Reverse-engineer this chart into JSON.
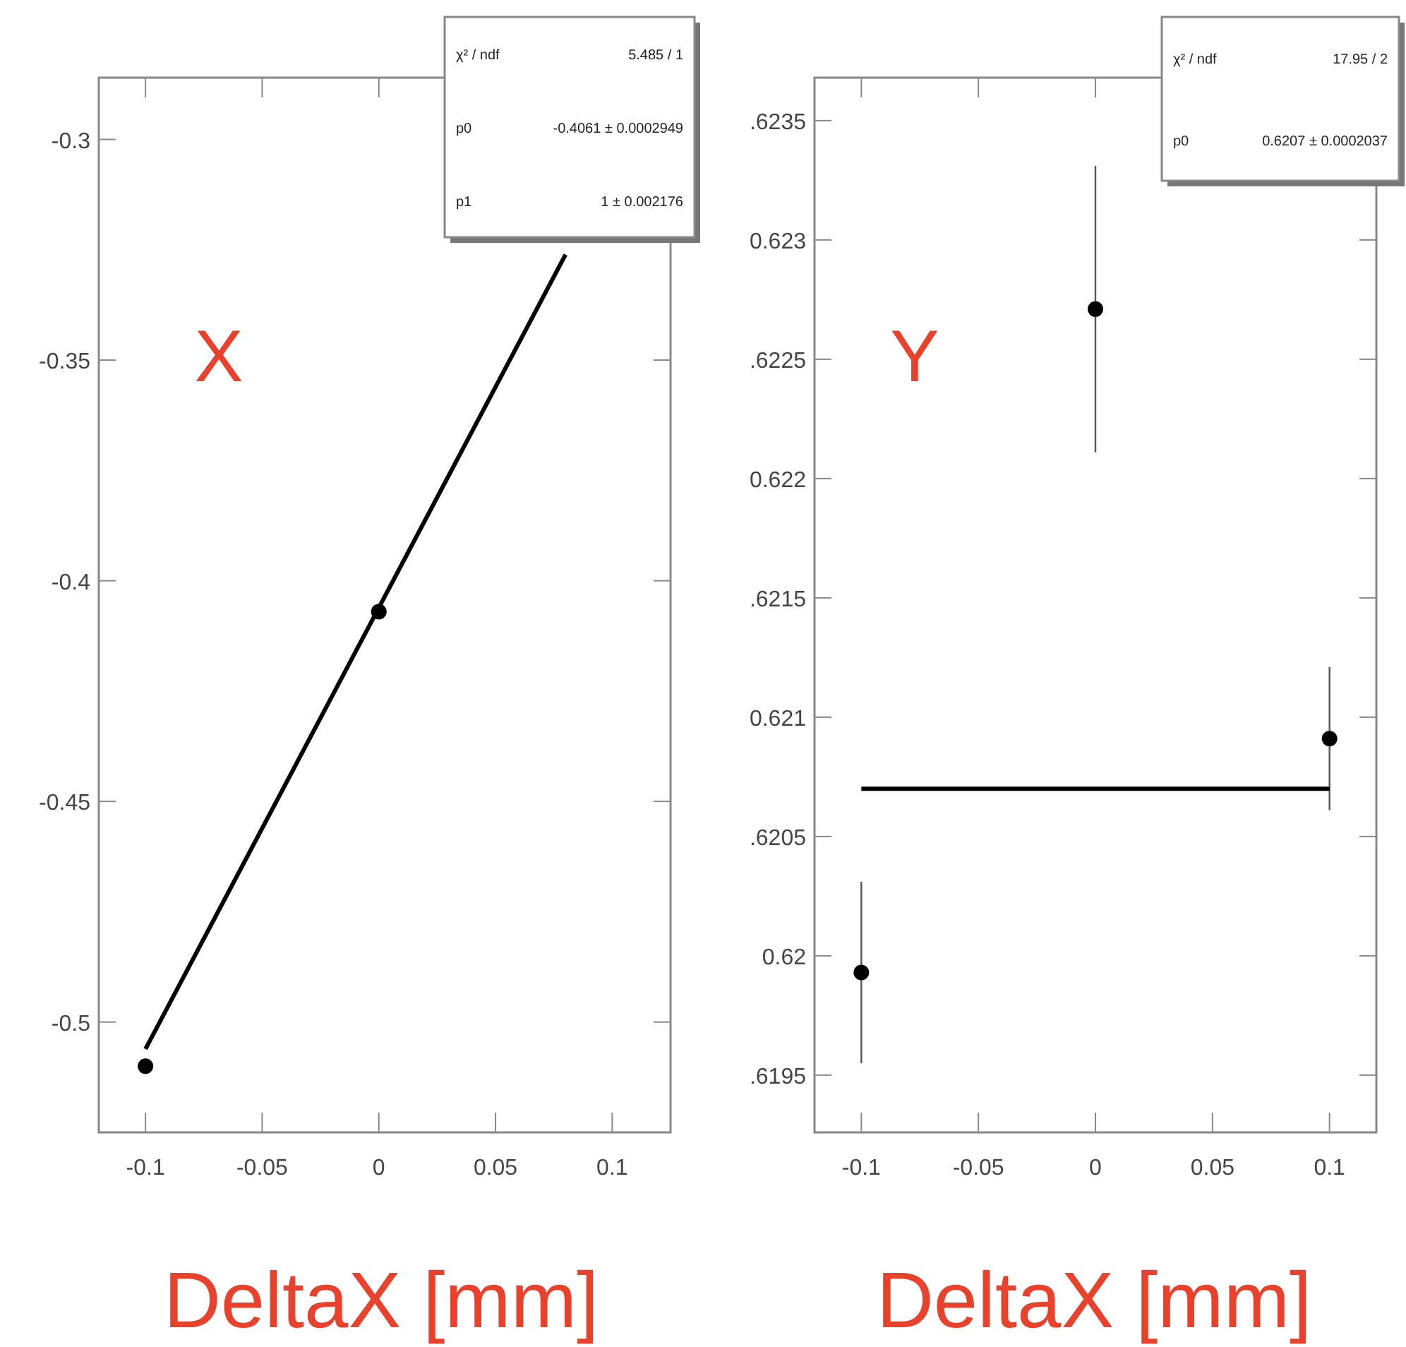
{
  "chart_data": [
    {
      "type": "scatter",
      "title": "X",
      "xlabel": "DeltaX [mm]",
      "xlim": [
        -0.12,
        0.125
      ],
      "ylim": [
        -0.525,
        -0.286
      ],
      "xticks": [
        -0.1,
        -0.05,
        0,
        0.05,
        0.1
      ],
      "yticks": [
        -0.5,
        -0.45,
        -0.4,
        -0.35,
        -0.3
      ],
      "marker": "circle",
      "grid": false,
      "annotations": [
        "χ² / ndf",
        "5.485 / 1",
        "p0",
        "-0.4061 ± 0.0002949",
        "p1",
        "1 ± 0.002176"
      ],
      "series": [
        {
          "color": "#000000",
          "x": [
            -0.1,
            0
          ],
          "values": [
            -0.51,
            -0.407
          ]
        },
        {
          "type": "line",
          "marker": "none",
          "color": "#000000",
          "x": [
            -0.1,
            0.08
          ],
          "values": [
            -0.5061,
            -0.3261
          ]
        }
      ]
    },
    {
      "type": "scatter",
      "title": "Y",
      "xlabel": "DeltaX [mm]",
      "xlim": [
        -0.12,
        0.12
      ],
      "ylim": [
        0.61926,
        0.62368
      ],
      "xticks": [
        -0.1,
        -0.05,
        0,
        0.05,
        0.1
      ],
      "yticks": [
        {
          "value": 0.6195,
          "label": ".6195"
        },
        {
          "value": 0.62,
          "label": "0.62"
        },
        {
          "value": 0.6205,
          "label": ".6205"
        },
        {
          "value": 0.621,
          "label": "0.621"
        },
        {
          "value": 0.6215,
          "label": ".6215"
        },
        {
          "value": 0.622,
          "label": "0.622"
        },
        {
          "value": 0.6225,
          "label": ".6225"
        },
        {
          "value": 0.623,
          "label": "0.623"
        },
        {
          "value": 0.6235,
          "label": ".6235"
        }
      ],
      "marker": "circle",
      "grid": false,
      "annotations": [
        "χ² / ndf",
        "17.95 / 2",
        "p0",
        "0.6207 ± 0.0002037"
      ],
      "series": [
        {
          "color": "#000000",
          "x": [
            -0.1,
            0,
            0.1
          ],
          "values": [
            0.61993,
            0.62271,
            0.62091
          ],
          "errors": [
            0.00038,
            0.0006,
            0.0003
          ]
        },
        {
          "type": "line",
          "marker": "none",
          "color": "#000000",
          "x": [
            -0.1,
            0.1
          ],
          "values": [
            0.6207,
            0.6207
          ]
        }
      ]
    }
  ]
}
